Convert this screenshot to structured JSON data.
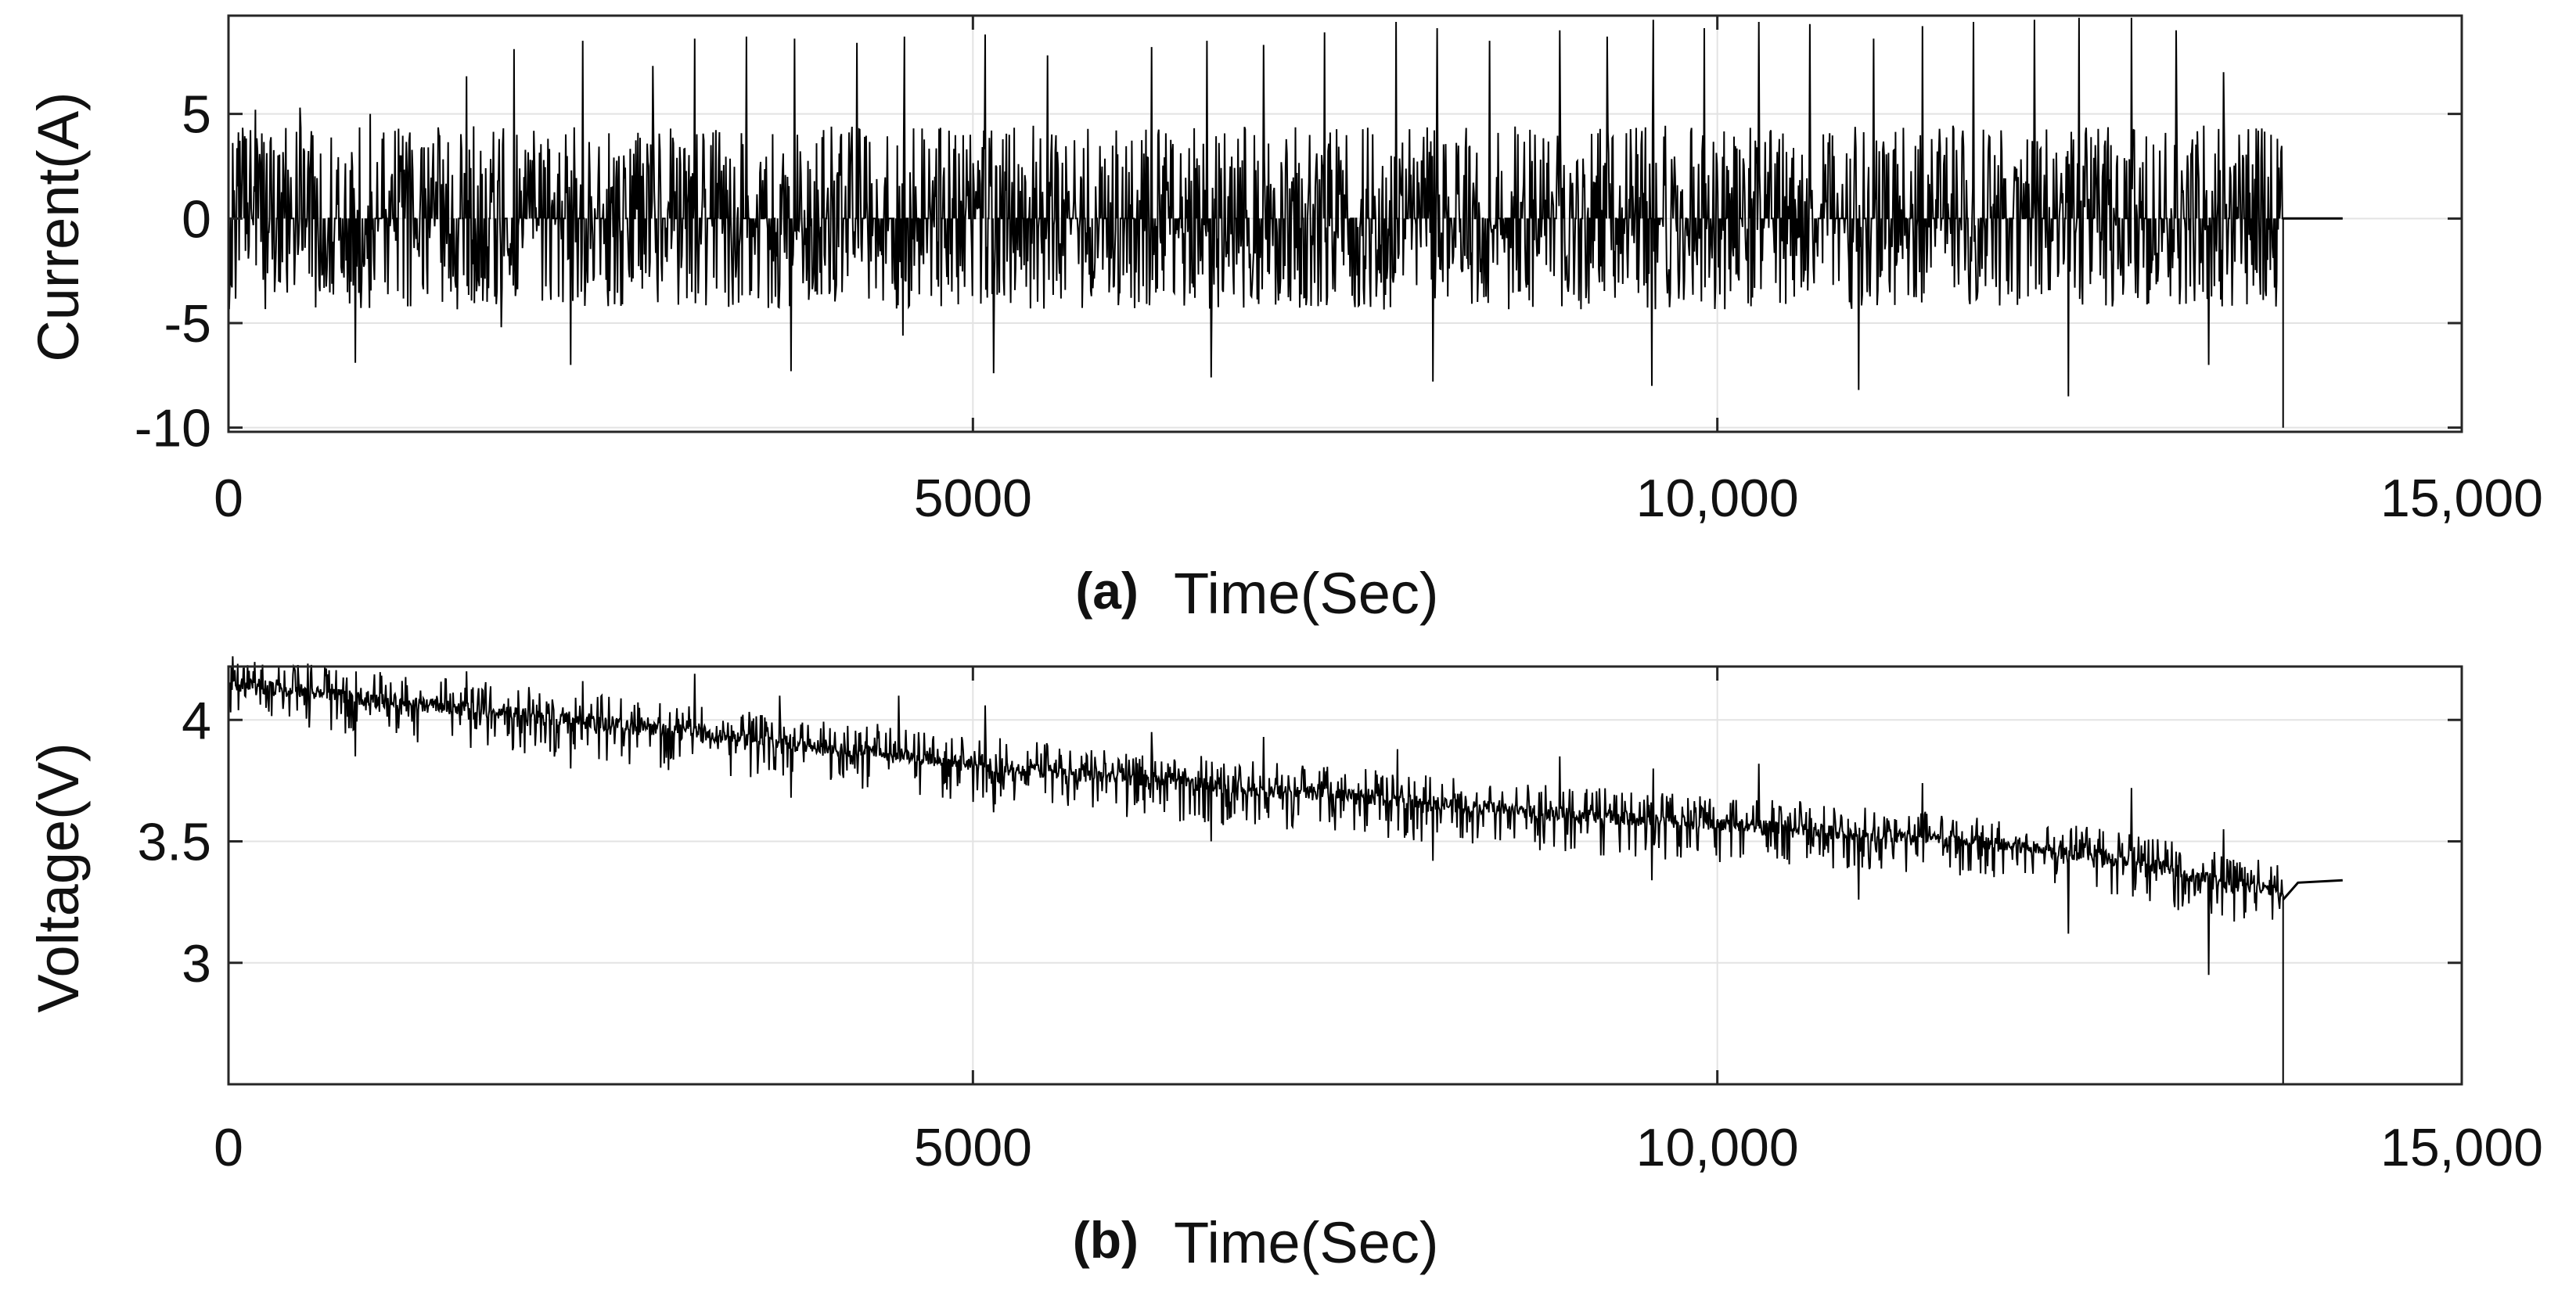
{
  "colors": {
    "line": "#000000",
    "grid": "#e3e3e3",
    "frame": "#262626",
    "background": "#ffffff"
  },
  "chart_data": [
    {
      "type": "line",
      "panel_label": "(a)",
      "xlabel": "Time(Sec)",
      "ylabel": "Current(A)",
      "xlim": [
        0,
        15000
      ],
      "ylim": [
        -10.2,
        9.7
      ],
      "xticks": [
        0,
        5000,
        10000,
        15000
      ],
      "xtick_labels": [
        "0",
        "5000",
        "10,000",
        "15,000"
      ],
      "yticks": [
        5,
        0,
        -5,
        -10
      ],
      "ytick_labels": [
        "5",
        "0",
        "-5",
        "-10"
      ],
      "grid": true,
      "data_end_x": 13800,
      "final_drop_y": -10,
      "tail": [
        [
          13800,
          0
        ],
        [
          14200,
          0
        ]
      ],
      "signal": {
        "description": "dense current pulses between about -8 and +9.5 A, mostly in [-5, 5]",
        "typical_max": 4.5,
        "typical_min": -4.5,
        "peak_spikes": [
          [
            180,
            5.2
          ],
          [
            480,
            5.3
          ],
          [
            950,
            5.0
          ],
          [
            1600,
            6.8
          ],
          [
            1920,
            8.1
          ],
          [
            2380,
            8.5
          ],
          [
            2850,
            7.3
          ],
          [
            3130,
            8.6
          ],
          [
            3480,
            8.7
          ],
          [
            3800,
            8.6
          ],
          [
            4220,
            8.4
          ],
          [
            4540,
            8.7
          ],
          [
            5080,
            8.8
          ],
          [
            5500,
            7.8
          ],
          [
            6200,
            8.2
          ],
          [
            6570,
            8.5
          ],
          [
            6950,
            8.3
          ],
          [
            7360,
            8.9
          ],
          [
            7840,
            9.4
          ],
          [
            8120,
            9.1
          ],
          [
            8470,
            8.5
          ],
          [
            8940,
            9.0
          ],
          [
            9260,
            8.7
          ],
          [
            9570,
            9.5
          ],
          [
            9910,
            9.1
          ],
          [
            10280,
            9.4
          ],
          [
            10620,
            9.3
          ],
          [
            11050,
            8.6
          ],
          [
            11380,
            9.2
          ],
          [
            11720,
            9.4
          ],
          [
            12130,
            9.5
          ],
          [
            12430,
            9.6
          ],
          [
            12780,
            9.6
          ],
          [
            13080,
            9.0
          ],
          [
            13400,
            7.0
          ]
        ],
        "trough_spikes": [
          [
            850,
            -6.9
          ],
          [
            1830,
            -5.2
          ],
          [
            2300,
            -7.0
          ],
          [
            3780,
            -7.3
          ],
          [
            4530,
            -5.6
          ],
          [
            5140,
            -7.4
          ],
          [
            6600,
            -7.6
          ],
          [
            8090,
            -7.8
          ],
          [
            9560,
            -8.0
          ],
          [
            10950,
            -8.2
          ],
          [
            12360,
            -8.5
          ],
          [
            13300,
            -7.0
          ]
        ]
      }
    },
    {
      "type": "line",
      "panel_label": "(b)",
      "xlabel": "Time(Sec)",
      "ylabel": "Voltage(V)",
      "xlim": [
        0,
        15000
      ],
      "ylim": [
        2.5,
        4.22
      ],
      "xticks": [
        0,
        5000,
        10000,
        15000
      ],
      "xtick_labels": [
        "0",
        "5000",
        "10,000",
        "15,000"
      ],
      "yticks": [
        4,
        3.5,
        3
      ],
      "ytick_labels": [
        "4",
        "3.5",
        "3"
      ],
      "grid": true,
      "data_end_x": 13800,
      "final_drop_y": 2.5,
      "tail": [
        [
          13800,
          3.26
        ],
        [
          13900,
          3.33
        ],
        [
          14200,
          3.34
        ]
      ],
      "signal": {
        "description": "noisy voltage decaying from about 4.15 V to about 3.3 V with upward and downward spikes",
        "baseline": [
          [
            0,
            4.15
          ],
          [
            1000,
            4.08
          ],
          [
            2000,
            4.02
          ],
          [
            3000,
            3.95
          ],
          [
            4000,
            3.89
          ],
          [
            5000,
            3.82
          ],
          [
            6000,
            3.76
          ],
          [
            7000,
            3.71
          ],
          [
            8000,
            3.66
          ],
          [
            9000,
            3.61
          ],
          [
            10000,
            3.57
          ],
          [
            11000,
            3.53
          ],
          [
            12000,
            3.48
          ],
          [
            12800,
            3.42
          ],
          [
            13400,
            3.33
          ],
          [
            13800,
            3.3
          ]
        ],
        "peak_spikes": [
          [
            650,
            4.18
          ],
          [
            1600,
            4.2
          ],
          [
            2380,
            4.16
          ],
          [
            3130,
            4.19
          ],
          [
            3700,
            4.1
          ],
          [
            4500,
            4.1
          ],
          [
            5080,
            4.06
          ],
          [
            6200,
            3.95
          ],
          [
            6950,
            3.93
          ],
          [
            7850,
            3.88
          ],
          [
            8940,
            3.85
          ],
          [
            9570,
            3.8
          ],
          [
            10280,
            3.82
          ],
          [
            11380,
            3.74
          ],
          [
            12780,
            3.72
          ],
          [
            13400,
            3.55
          ]
        ],
        "trough_spikes": [
          [
            850,
            3.85
          ],
          [
            2300,
            3.8
          ],
          [
            3780,
            3.68
          ],
          [
            5140,
            3.62
          ],
          [
            6600,
            3.5
          ],
          [
            8090,
            3.42
          ],
          [
            9560,
            3.34
          ],
          [
            10950,
            3.26
          ],
          [
            12360,
            3.12
          ],
          [
            13300,
            2.95
          ]
        ]
      }
    }
  ]
}
